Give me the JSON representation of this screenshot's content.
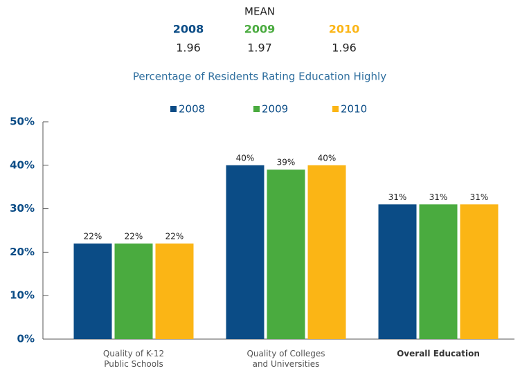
{
  "mean_table": {
    "title": "MEAN",
    "columns": [
      {
        "name": "2008",
        "color": "#0b4c86",
        "value": 1.96
      },
      {
        "name": "2009",
        "color": "#4aab3f",
        "value": 1.97
      },
      {
        "name": "2010",
        "color": "#fbb515",
        "value": 1.96
      }
    ]
  },
  "chart_data": {
    "type": "bar",
    "title": "Percentage of Residents Rating Education Highly",
    "categories": [
      "Quality of K-12\nPublic Schools",
      "Quality of Colleges\nand Universities",
      "Overall Education"
    ],
    "bold_categories": [
      2
    ],
    "series": [
      {
        "name": "2008",
        "color": "#0b4c86",
        "values": [
          22,
          40,
          31
        ],
        "value_labels": [
          "22%",
          "40%",
          "31%"
        ]
      },
      {
        "name": "2009",
        "color": "#4aab3f",
        "values": [
          22,
          39,
          31
        ],
        "value_labels": [
          "22%",
          "39%",
          "31%"
        ]
      },
      {
        "name": "2010",
        "color": "#fbb515",
        "values": [
          22,
          40,
          31
        ],
        "value_labels": [
          "22%",
          "40%",
          "31%"
        ]
      }
    ],
    "ylim": [
      0,
      50
    ],
    "yticks": [
      {
        "value": 0,
        "label": "0%"
      },
      {
        "value": 10,
        "label": "10%"
      },
      {
        "value": 20,
        "label": "20%"
      },
      {
        "value": 30,
        "label": "30%"
      },
      {
        "value": 40,
        "label": "40%"
      },
      {
        "value": 50,
        "label": "50%"
      }
    ],
    "legend": "top"
  }
}
